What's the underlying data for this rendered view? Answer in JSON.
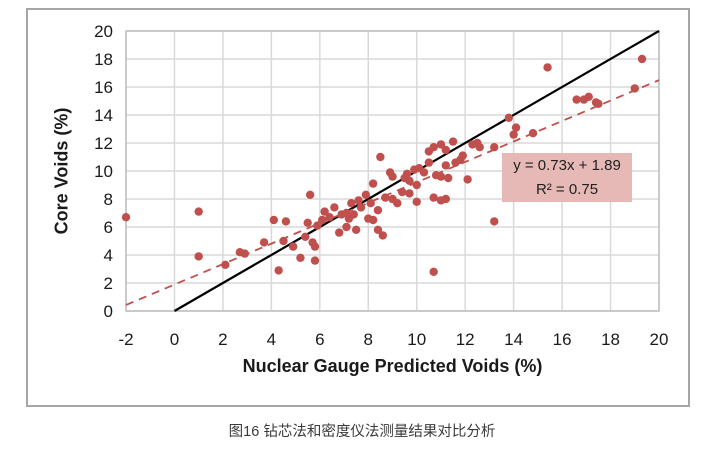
{
  "figure": {
    "caption": "图16 钻芯法和密度仪法测量结果对比分析"
  },
  "annotation": {
    "equation": "y = 0.73x + 1.89",
    "r_squared": "R² = 0.75",
    "background_color": "#e7b9b6"
  },
  "chart_data": {
    "type": "scatter",
    "title": "",
    "xlabel": "Nuclear Gauge Predicted Voids (%)",
    "ylabel": "Core Voids (%)",
    "xlim": [
      -2,
      20
    ],
    "ylim": [
      0,
      20
    ],
    "x_ticks": [
      -2,
      0,
      2,
      4,
      6,
      8,
      10,
      12,
      14,
      16,
      18,
      20
    ],
    "y_ticks": [
      0,
      2,
      4,
      6,
      8,
      10,
      12,
      14,
      16,
      18,
      20
    ],
    "grid": true,
    "legend": "none",
    "colors": {
      "marker": "#c0504d",
      "trend_line": "#c0504d",
      "identity_line": "#000000",
      "gridline": "#d9d9d9",
      "plot_border": "#bfbfbf",
      "figure_border": "#a6a6a6"
    },
    "lines": [
      {
        "name": "identity-line",
        "style": "solid",
        "color": "#000000",
        "from": [
          0,
          0
        ],
        "to": [
          20,
          20
        ]
      },
      {
        "name": "trend-line",
        "style": "dashed",
        "color": "#c0504d",
        "equation": "y = 0.73x + 1.89",
        "r2": 0.75,
        "slope": 0.73,
        "intercept": 1.89,
        "from": [
          -2,
          0.43
        ],
        "to": [
          20,
          16.49
        ]
      }
    ],
    "series": [
      {
        "name": "core-vs-gauge-voids",
        "points": [
          [
            -2.0,
            6.7
          ],
          [
            1.0,
            7.1
          ],
          [
            1.0,
            3.9
          ],
          [
            2.1,
            3.3
          ],
          [
            2.7,
            4.2
          ],
          [
            2.9,
            4.1
          ],
          [
            3.7,
            4.9
          ],
          [
            4.1,
            6.5
          ],
          [
            4.6,
            6.4
          ],
          [
            4.5,
            5.0
          ],
          [
            4.9,
            4.6
          ],
          [
            4.3,
            2.9
          ],
          [
            5.2,
            3.8
          ],
          [
            5.4,
            5.3
          ],
          [
            5.7,
            4.9
          ],
          [
            5.8,
            4.6
          ],
          [
            5.8,
            3.6
          ],
          [
            5.6,
            8.3
          ],
          [
            5.5,
            6.3
          ],
          [
            5.9,
            6.1
          ],
          [
            6.1,
            6.5
          ],
          [
            6.2,
            7.1
          ],
          [
            6.4,
            6.7
          ],
          [
            6.6,
            7.4
          ],
          [
            6.8,
            5.6
          ],
          [
            6.9,
            6.9
          ],
          [
            7.1,
            7.0
          ],
          [
            7.1,
            6.0
          ],
          [
            7.2,
            6.6
          ],
          [
            7.4,
            6.9
          ],
          [
            7.5,
            5.8
          ],
          [
            7.3,
            7.7
          ],
          [
            7.6,
            7.9
          ],
          [
            7.7,
            7.4
          ],
          [
            7.9,
            8.3
          ],
          [
            8.0,
            6.6
          ],
          [
            8.1,
            7.7
          ],
          [
            8.2,
            6.5
          ],
          [
            8.2,
            9.1
          ],
          [
            8.4,
            5.8
          ],
          [
            8.4,
            7.2
          ],
          [
            8.5,
            11.0
          ],
          [
            8.6,
            5.4
          ],
          [
            8.7,
            8.1
          ],
          [
            8.9,
            9.9
          ],
          [
            9.0,
            9.6
          ],
          [
            9.0,
            8.0
          ],
          [
            9.2,
            7.7
          ],
          [
            9.4,
            8.5
          ],
          [
            9.5,
            9.5
          ],
          [
            9.6,
            9.8
          ],
          [
            9.7,
            9.3
          ],
          [
            9.7,
            8.4
          ],
          [
            9.9,
            10.1
          ],
          [
            10.0,
            9.0
          ],
          [
            10.0,
            7.8
          ],
          [
            10.1,
            10.2
          ],
          [
            10.3,
            9.9
          ],
          [
            10.5,
            10.6
          ],
          [
            10.5,
            11.4
          ],
          [
            10.7,
            11.7
          ],
          [
            10.7,
            8.1
          ],
          [
            10.7,
            2.8
          ],
          [
            10.8,
            9.7
          ],
          [
            11.0,
            9.6
          ],
          [
            11.0,
            7.9
          ],
          [
            11.0,
            11.9
          ],
          [
            11.2,
            11.5
          ],
          [
            11.2,
            10.4
          ],
          [
            11.2,
            8.0
          ],
          [
            11.3,
            9.5
          ],
          [
            11.5,
            12.1
          ],
          [
            11.6,
            10.6
          ],
          [
            11.8,
            10.8
          ],
          [
            11.9,
            11.1
          ],
          [
            12.1,
            9.4
          ],
          [
            12.3,
            11.9
          ],
          [
            12.5,
            12.0
          ],
          [
            12.6,
            11.7
          ],
          [
            13.2,
            11.7
          ],
          [
            13.2,
            6.4
          ],
          [
            13.8,
            13.8
          ],
          [
            14.1,
            13.1
          ],
          [
            14.0,
            12.6
          ],
          [
            14.8,
            12.7
          ],
          [
            15.4,
            17.4
          ],
          [
            16.6,
            15.1
          ],
          [
            16.9,
            15.1
          ],
          [
            17.1,
            15.3
          ],
          [
            17.4,
            14.9
          ],
          [
            17.5,
            14.8
          ],
          [
            19.0,
            15.9
          ],
          [
            19.3,
            18.0
          ]
        ]
      }
    ]
  }
}
